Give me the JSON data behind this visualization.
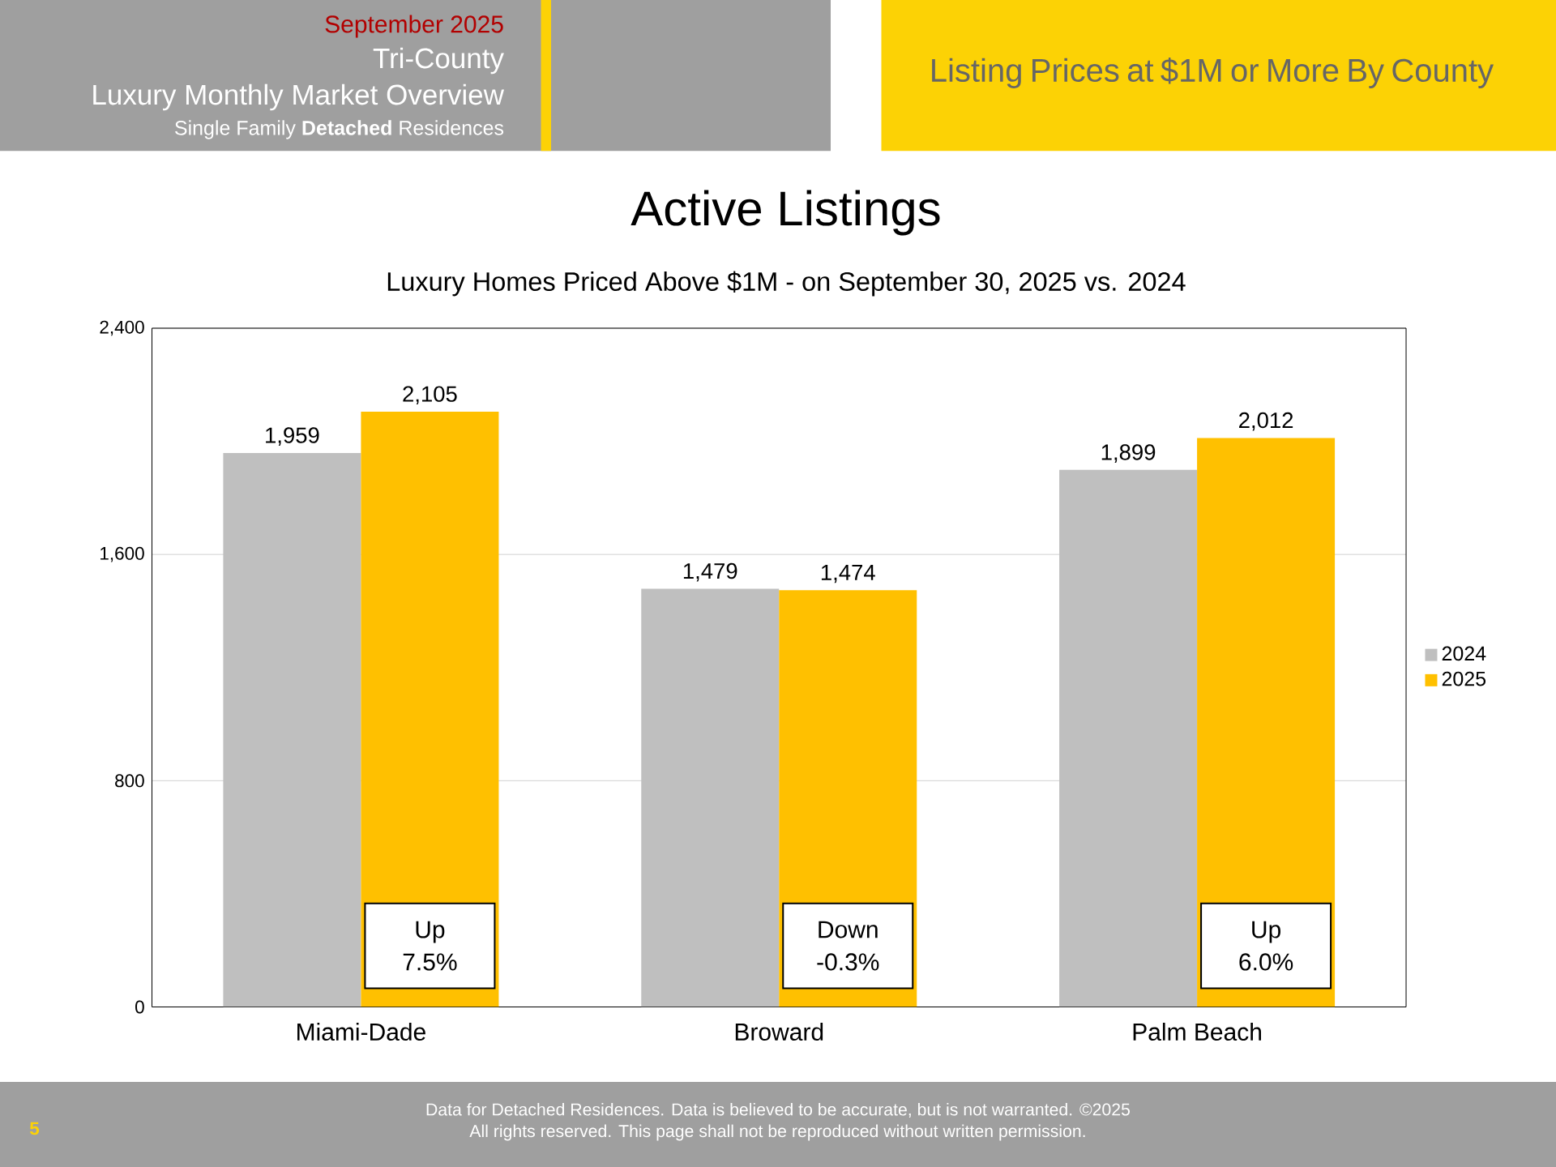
{
  "chart_data": {
    "type": "bar",
    "title": "Active Listings",
    "subtitle": "Luxury Homes Priced Above $1M - on September 30,  2025 vs. 2024",
    "categories": [
      "Miami-Dade",
      "Broward",
      "Palm Beach"
    ],
    "series": [
      {
        "name": "2024",
        "color": "#bfbfbf",
        "values": [
          1959,
          1479,
          1899
        ],
        "value_labels": [
          "1,959",
          "1,479",
          "1,899"
        ]
      },
      {
        "name": "2025",
        "color": "#ffc000",
        "values": [
          2105,
          1474,
          2012
        ],
        "value_labels": [
          "2,105",
          "1,474",
          "2,012"
        ]
      }
    ],
    "ylim": [
      0,
      2400
    ],
    "yticks": [
      0,
      800,
      {
        "value": 1600,
        "label": "1,600"
      },
      {
        "value": 2400,
        "label": "2,400"
      }
    ],
    "grid": "y",
    "legend": "right",
    "annotations": [
      "Up 7.5%",
      "Down -0.3%",
      "Up 6.0%",
      "September 2025",
      "Tri-County",
      "Luxury Monthly Market Overview",
      "Single Family **Detached** Residences",
      "Listing Prices at $1M or More By County",
      "Data for Detached Residences.  Data is believed to be accurate, but is not warranted.  ©2025",
      "All rights reserved. This page shall not be reproduced without written permission.",
      "5"
    ]
  }
}
